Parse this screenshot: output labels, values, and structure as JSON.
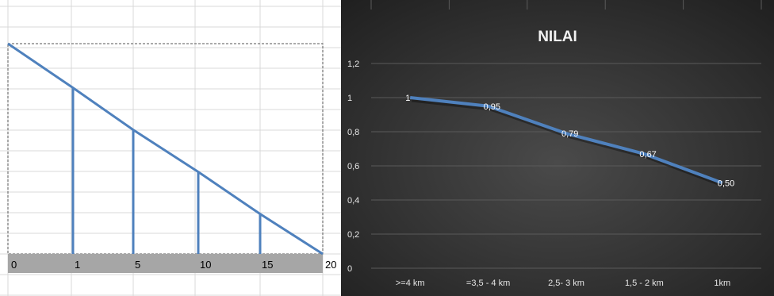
{
  "chart_data": [
    {
      "type": "line",
      "x_tick_labels": [
        "0",
        "1",
        "5",
        "10",
        "15",
        "20"
      ],
      "x": [
        0,
        1,
        5,
        10,
        15,
        20
      ],
      "y": [
        1.0,
        0.79,
        0.59,
        0.39,
        0.19,
        0.0
      ],
      "drops": [
        {
          "x": 1,
          "y": 0.79
        },
        {
          "x": 5,
          "y": 0.59
        },
        {
          "x": 10,
          "y": 0.39
        },
        {
          "x": 15,
          "y": 0.19
        }
      ],
      "line_color": "#4f81bd",
      "axis_band_color": "#a6a6a6",
      "grid": true
    },
    {
      "type": "line",
      "title": "NILAI",
      "categories": [
        ">=4 km",
        "=3,5 - 4 km",
        "2,5- 3 km",
        "1,5 - 2 km",
        "1km"
      ],
      "series": [
        {
          "values": [
            1,
            0.95,
            0.79,
            0.67,
            0.5
          ],
          "data_labels": [
            "1",
            "0,95",
            "0,79",
            "0,67",
            "0,50"
          ],
          "color": "#4f81bd"
        }
      ],
      "y_tick_labels": [
        "0",
        "0,2",
        "0,4",
        "0,6",
        "0,8",
        "1",
        "1,2"
      ],
      "ylim": [
        0,
        1.2
      ],
      "grid": true,
      "background": "#2e2e2e"
    }
  ]
}
